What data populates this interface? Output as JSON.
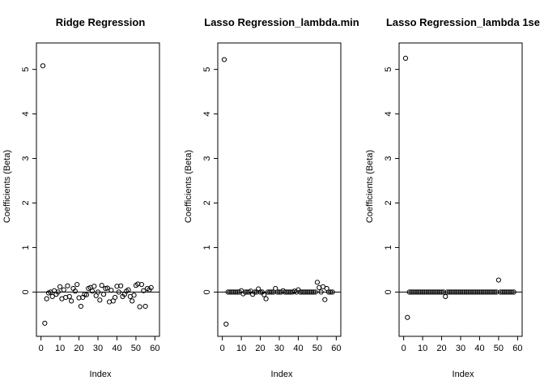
{
  "chart_data": [
    {
      "type": "scatter",
      "title": "Ridge Regression",
      "xlabel": "Index",
      "ylabel": "Coefficients (Beta)",
      "xlim": [
        0,
        60
      ],
      "ylim": [
        -0.75,
        5.35
      ],
      "xticks": [
        0,
        10,
        20,
        30,
        40,
        50,
        60
      ],
      "yticks": [
        0,
        1,
        2,
        3,
        4,
        5
      ],
      "hline": 0,
      "x": [
        1,
        2,
        3,
        4,
        5,
        6,
        7,
        8,
        9,
        10,
        11,
        12,
        13,
        14,
        15,
        16,
        17,
        18,
        19,
        20,
        21,
        22,
        23,
        24,
        25,
        26,
        27,
        28,
        29,
        30,
        31,
        32,
        33,
        34,
        35,
        36,
        37,
        38,
        39,
        40,
        41,
        42,
        43,
        44,
        45,
        46,
        47,
        48,
        49,
        50,
        51,
        52,
        53,
        54,
        55,
        56,
        57,
        58
      ],
      "y": [
        5.08,
        -0.7,
        -0.15,
        -0.02,
        0.0,
        -0.1,
        0.03,
        -0.05,
        0.0,
        0.12,
        -0.15,
        0.05,
        -0.12,
        0.14,
        -0.1,
        -0.2,
        0.08,
        0.02,
        0.17,
        -0.13,
        -0.32,
        -0.12,
        -0.05,
        -0.06,
        0.08,
        0.1,
        0.02,
        0.13,
        -0.08,
        0.0,
        -0.18,
        0.15,
        -0.05,
        0.08,
        0.09,
        -0.22,
        0.04,
        -0.2,
        -0.12,
        0.13,
        0.0,
        0.14,
        -0.1,
        -0.05,
        0.02,
        0.05,
        -0.1,
        -0.2,
        -0.07,
        0.15,
        0.18,
        -0.33,
        0.17,
        0.03,
        -0.32,
        0.08,
        0.05,
        0.1
      ]
    },
    {
      "type": "scatter",
      "title": "Lasso Regression_lambda.min",
      "xlabel": "Index",
      "ylabel": "Coefficients (Beta)",
      "xlim": [
        0,
        60
      ],
      "ylim": [
        -0.75,
        5.35
      ],
      "xticks": [
        0,
        10,
        20,
        30,
        40,
        50,
        60
      ],
      "yticks": [
        0,
        1,
        2,
        3,
        4,
        5
      ],
      "hline": 0,
      "x": [
        1,
        2,
        3,
        4,
        5,
        6,
        7,
        8,
        9,
        10,
        11,
        12,
        13,
        14,
        15,
        16,
        17,
        18,
        19,
        20,
        21,
        22,
        23,
        24,
        25,
        26,
        27,
        28,
        29,
        30,
        31,
        32,
        33,
        34,
        35,
        36,
        37,
        38,
        39,
        40,
        41,
        42,
        43,
        44,
        45,
        46,
        47,
        48,
        49,
        50,
        51,
        52,
        53,
        54,
        55,
        56,
        57,
        58
      ],
      "y": [
        5.22,
        -0.72,
        0.0,
        0.0,
        0.0,
        0.0,
        0.0,
        0.0,
        0.0,
        0.03,
        -0.04,
        0.0,
        0.0,
        0.0,
        0.02,
        -0.05,
        0.0,
        0.0,
        0.07,
        0.0,
        0.0,
        -0.06,
        -0.15,
        0.0,
        0.0,
        0.0,
        0.0,
        0.08,
        0.0,
        0.0,
        0.0,
        0.03,
        0.0,
        0.0,
        0.0,
        0.0,
        0.0,
        0.02,
        0.0,
        0.05,
        0.0,
        0.0,
        0.0,
        0.0,
        0.0,
        0.0,
        0.0,
        0.0,
        0.0,
        0.22,
        0.1,
        0.0,
        0.12,
        -0.17,
        0.08,
        0.0,
        0.0,
        0.0
      ]
    },
    {
      "type": "scatter",
      "title": "Lasso Regression_lambda 1se",
      "xlabel": "Index",
      "ylabel": "Coefficients (Beta)",
      "xlim": [
        0,
        60
      ],
      "ylim": [
        -0.75,
        5.35
      ],
      "xticks": [
        0,
        10,
        20,
        30,
        40,
        50,
        60
      ],
      "yticks": [
        0,
        1,
        2,
        3,
        4,
        5
      ],
      "hline": 0,
      "x": [
        1,
        2,
        3,
        4,
        5,
        6,
        7,
        8,
        9,
        10,
        11,
        12,
        13,
        14,
        15,
        16,
        17,
        18,
        19,
        20,
        21,
        22,
        23,
        24,
        25,
        26,
        27,
        28,
        29,
        30,
        31,
        32,
        33,
        34,
        35,
        36,
        37,
        38,
        39,
        40,
        41,
        42,
        43,
        44,
        45,
        46,
        47,
        48,
        49,
        50,
        51,
        52,
        53,
        54,
        55,
        56,
        57,
        58
      ],
      "y": [
        5.25,
        -0.57,
        0.0,
        0.0,
        0.0,
        0.0,
        0.0,
        0.0,
        0.0,
        0.0,
        0.0,
        0.0,
        0.0,
        0.0,
        0.0,
        0.0,
        0.0,
        0.0,
        0.0,
        0.0,
        0.0,
        -0.1,
        0.0,
        0.0,
        0.0,
        0.0,
        0.0,
        0.0,
        0.0,
        0.0,
        0.0,
        0.0,
        0.0,
        0.0,
        0.0,
        0.0,
        0.0,
        0.0,
        0.0,
        0.0,
        0.0,
        0.0,
        0.0,
        0.0,
        0.0,
        0.0,
        0.0,
        0.0,
        0.0,
        0.27,
        0.0,
        0.0,
        0.0,
        0.0,
        0.0,
        0.0,
        0.0,
        0.0
      ]
    }
  ]
}
